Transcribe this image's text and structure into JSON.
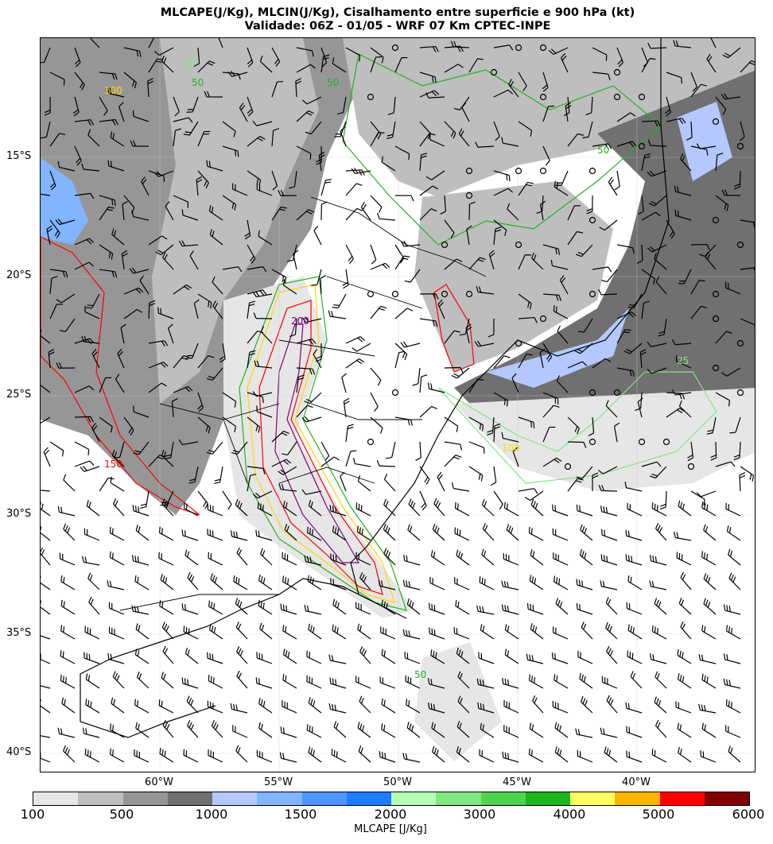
{
  "title": {
    "line1": "MLCAPE(J/Kg), MLCIN(J/Kg), Cisalhamento entre superficie e 900 hPa (kt)",
    "line2": "Validade: 06Z - 01/05 - WRF 07 Km CPTEC-INPE"
  },
  "map": {
    "lon_range": [
      "65°W",
      "35°W"
    ],
    "lat_range": [
      "10°S",
      "40.8°S"
    ],
    "lon_ticks": [
      "60°W",
      "55°W",
      "50°W",
      "45°W",
      "40°W"
    ],
    "lat_ticks": [
      "15°S",
      "20°S",
      "25°S",
      "30°S",
      "35°S",
      "40°S"
    ],
    "grid": true,
    "contour_labels": [
      "50",
      "25",
      "100",
      "150",
      "200",
      "50",
      "50",
      "100",
      "25",
      "50"
    ],
    "wind_barbs": true
  },
  "colorbar": {
    "label": "MLCAPE [J/Kg]",
    "tick_labels": [
      "100",
      "500",
      "1000",
      "1500",
      "2000",
      "3000",
      "4000",
      "5000",
      "6000"
    ],
    "colors": [
      "#e6e6e6",
      "#bebebe",
      "#969696",
      "#707070",
      "#b4c8ff",
      "#82b4ff",
      "#5096ff",
      "#1e7dff",
      "#b4ffb4",
      "#82e682",
      "#50d250",
      "#1eb41e",
      "#ffff64",
      "#ffb400",
      "#ff0000",
      "#800000"
    ]
  }
}
